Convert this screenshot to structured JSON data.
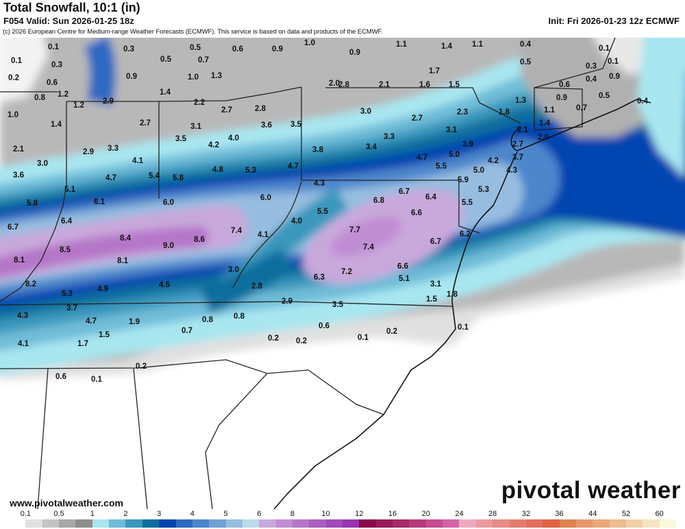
{
  "header": {
    "title": "Total Snowfall, 10:1 (in)",
    "subtitle": "F054 Valid: Sun 2026-01-25 18z",
    "init": "Init: Fri 2026-01-23 12z ECMWF",
    "credit": "(c) 2026 European Centre for Medium-range Weather Forecasts (ECMWF). This service is based on data and products of the ECMWF."
  },
  "map": {
    "region": "Ohio Valley, Mid-Atlantic and Northeast US",
    "labels": [
      "0.1",
      "0.1",
      "0.3",
      "0.2",
      "0.6",
      "0.8",
      "1.2",
      "1.0",
      "1.2",
      "1.4",
      "2.9",
      "2.1",
      "3.0",
      "3.6",
      "0.3",
      "0.5",
      "0.5",
      "0.7",
      "0.6",
      "0.9",
      "1.0",
      "1.3",
      "1.4",
      "2.2",
      "2.7",
      "2.8",
      "2.7",
      "3.1",
      "3.6",
      "3.5",
      "3.5",
      "4.2",
      "4.0",
      "2.9",
      "3.3",
      "4.1",
      "4.7",
      "5.4",
      "5.8",
      "4.8",
      "5.3",
      "4.7",
      "5.1",
      "0.9",
      "1.0",
      "0.9",
      "1.1",
      "1.4",
      "1.1",
      "0.4",
      "0.5",
      "0.1",
      "0.1",
      "0.3",
      "0.4",
      "0.9",
      "0.6",
      "0.9",
      "0.5",
      "0.4",
      "0.7",
      "1.1",
      "1.3",
      "1.8",
      "1.4",
      "2.1",
      "2.0",
      "2.7",
      "3.7",
      "4.3",
      "4.2",
      "5.0",
      "5.3",
      "5.9",
      "2.0",
      "2.8",
      "2.1",
      "1.6",
      "1.5",
      "1.7",
      "3.0",
      "2.7",
      "2.3",
      "3.1",
      "3.3",
      "3.4",
      "3.8",
      "3.9",
      "4.7",
      "5.0",
      "5.5",
      "4.3",
      "6.7",
      "6.8",
      "6.4",
      "6.6",
      "5.5",
      "5.5",
      "6.2",
      "7.7",
      "7.4",
      "6.7",
      "6.6",
      "7.2",
      "6.3",
      "5.1",
      "3.1",
      "1.8",
      "1.5",
      "3.5",
      "2.9",
      "0.6",
      "0.2",
      "0.1",
      "0.2",
      "0.1",
      "5.8",
      "6.1",
      "6.0",
      "6.0",
      "6.4",
      "6.7",
      "8.4",
      "8.6",
      "7.4",
      "4.1",
      "4.0",
      "9.0",
      "8.5",
      "8.1",
      "8.1",
      "8.2",
      "3.0",
      "2.8",
      "4.9",
      "4.5",
      "5.3",
      "3.7",
      "4.3",
      "4.7",
      "1.9",
      "0.8",
      "0.8",
      "0.7",
      "1.5",
      "1.7",
      "4.1",
      "0.2",
      "0.2",
      "0.6",
      "0.1"
    ]
  },
  "footer": {
    "website": "www.pivotalweather.com",
    "logo": "pivotal weather"
  },
  "legend": {
    "ticks": [
      "0.1",
      "0.5",
      "1",
      "2",
      "3",
      "4",
      "5",
      "6",
      "8",
      "10",
      "12",
      "16",
      "20",
      "24",
      "28",
      "32",
      "36",
      "44",
      "52",
      "60"
    ],
    "colors": [
      "#ffffff",
      "#e0e0e0",
      "#c4c4c4",
      "#a8a8a8",
      "#8e8e8e",
      "#a8e6f0",
      "#6fbcd8",
      "#3b97bc",
      "#0b6e9e",
      "#0344b0",
      "#2e69c2",
      "#4d86cc",
      "#70a2d6",
      "#96bde0",
      "#bcdbe8",
      "#c9a8dc",
      "#c08cd4",
      "#b576c8",
      "#ab5fc0",
      "#a24ab8",
      "#9a35b0",
      "#8a0a4a",
      "#991c5a",
      "#a82a68",
      "#b83a7a",
      "#c74c90",
      "#d463a8",
      "#eeaabd",
      "#eb9aa0",
      "#e88a88",
      "#e47c70",
      "#e46e5c",
      "#e06444",
      "#e08450",
      "#e6986a",
      "#eaa87a",
      "#eebc90",
      "#f2d0a8",
      "#f6e4c4",
      "#faf8dc"
    ]
  }
}
